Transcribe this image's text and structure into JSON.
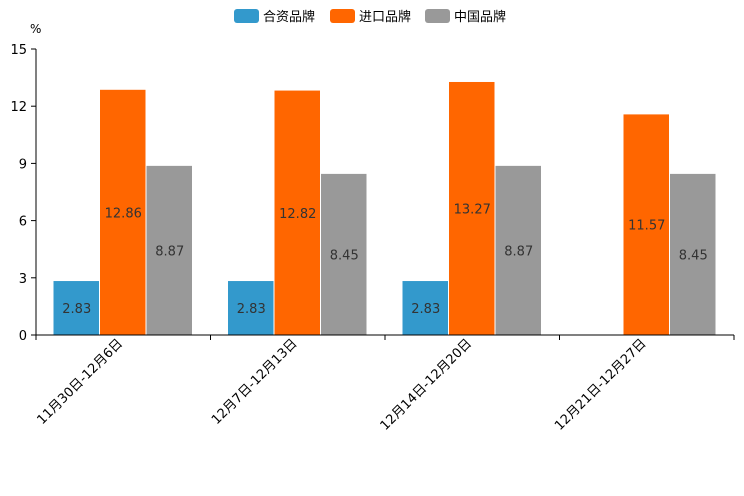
{
  "chart_data": {
    "type": "bar",
    "unit": "%",
    "categories": [
      "11月30日-12月6日",
      "12月7日-12月13日",
      "12月14日-12月20日",
      "12月21日-12月27日"
    ],
    "series": [
      {
        "name": "合资品牌",
        "color": "#3399cc",
        "values": [
          2.83,
          2.83,
          2.83,
          null
        ]
      },
      {
        "name": "进口品牌",
        "color": "#ff6600",
        "values": [
          12.86,
          12.82,
          13.27,
          11.57
        ]
      },
      {
        "name": "中国品牌",
        "color": "#999999",
        "values": [
          8.87,
          8.45,
          8.87,
          8.45
        ]
      }
    ],
    "ylim": [
      0,
      15
    ],
    "yticks": [
      0,
      3,
      6,
      9,
      12,
      15
    ],
    "legend_position": "top-center",
    "grid": false
  }
}
